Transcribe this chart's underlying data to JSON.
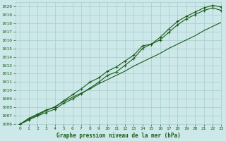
{
  "title": "Graphe pression niveau de la mer (hPa)",
  "bg_color": "#cce8e8",
  "grid_color": "#a8cccc",
  "line_color": "#1a5c1a",
  "xlim": [
    -0.5,
    23
  ],
  "ylim": [
    1006,
    1020.5
  ],
  "yticks": [
    1006,
    1007,
    1008,
    1009,
    1010,
    1011,
    1012,
    1013,
    1014,
    1015,
    1016,
    1017,
    1018,
    1019,
    1020
  ],
  "xticks": [
    0,
    1,
    2,
    3,
    4,
    5,
    6,
    7,
    8,
    9,
    10,
    11,
    12,
    13,
    14,
    15,
    16,
    17,
    18,
    19,
    20,
    21,
    22,
    23
  ],
  "line_straight": [
    1006.0,
    1006.6,
    1007.1,
    1007.6,
    1008.1,
    1008.7,
    1009.2,
    1009.7,
    1010.2,
    1010.8,
    1011.3,
    1011.8,
    1012.3,
    1012.9,
    1013.4,
    1013.9,
    1014.4,
    1015.0,
    1015.5,
    1016.0,
    1016.5,
    1017.1,
    1017.6,
    1018.1
  ],
  "line_upper": [
    1006.0,
    1006.7,
    1007.2,
    1007.7,
    1008.0,
    1008.8,
    1009.5,
    1010.2,
    1011.0,
    1011.5,
    1012.3,
    1012.8,
    1013.5,
    1014.2,
    1015.3,
    1015.5,
    1016.3,
    1017.3,
    1018.2,
    1018.8,
    1019.3,
    1019.8,
    1020.1,
    1019.9
  ],
  "line_lower": [
    1006.0,
    1006.5,
    1007.0,
    1007.4,
    1007.8,
    1008.5,
    1009.0,
    1009.6,
    1010.3,
    1011.0,
    1011.8,
    1012.2,
    1013.0,
    1013.8,
    1015.0,
    1015.5,
    1016.0,
    1016.9,
    1017.8,
    1018.5,
    1019.0,
    1019.5,
    1019.8,
    1019.5
  ]
}
